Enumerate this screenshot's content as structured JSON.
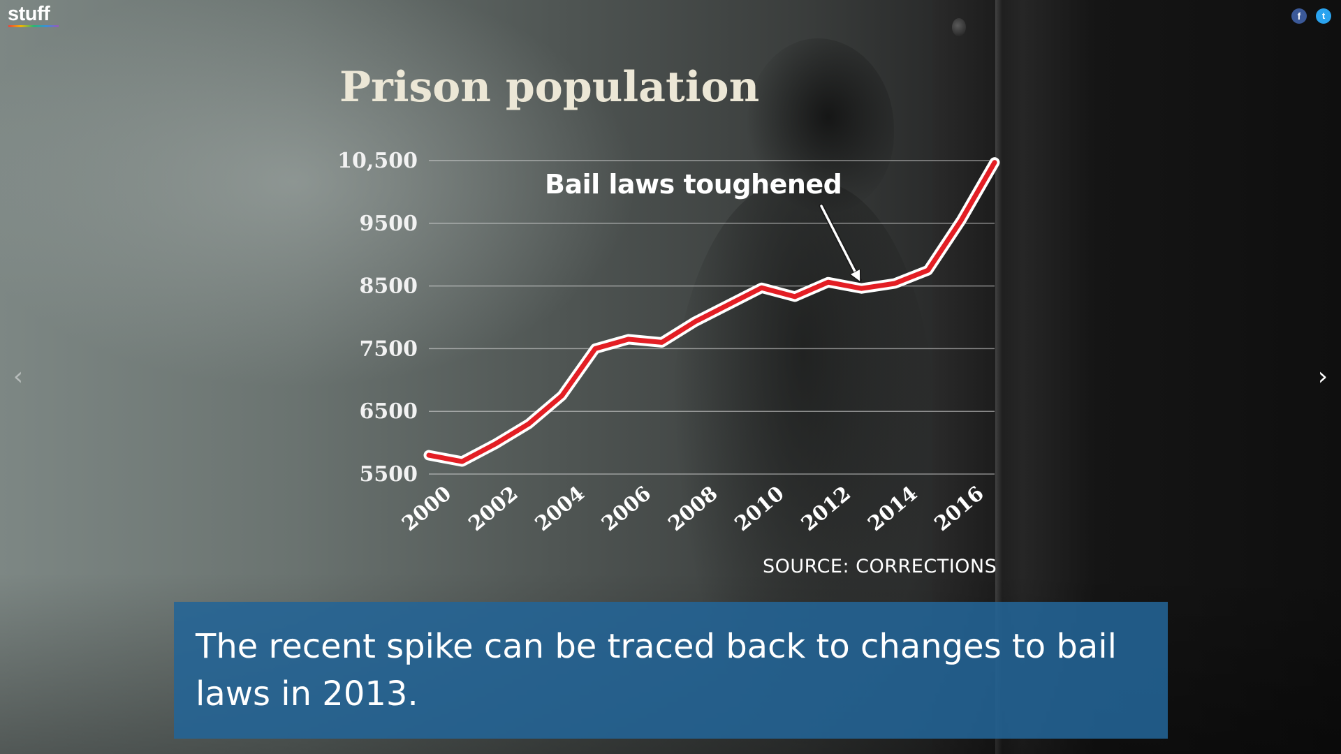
{
  "brand": {
    "logo": "stuff"
  },
  "social": {
    "facebook_glyph": "f",
    "twitter_glyph": "t"
  },
  "navigation": {
    "prev_icon": "chevron-left-icon",
    "next_icon": "chevron-right-icon",
    "prev_glyph": "‹",
    "next_glyph": "›"
  },
  "chart_data": {
    "type": "line",
    "title": "Prison population",
    "xlabel": "",
    "ylabel": "",
    "x": [
      2000,
      2001,
      2002,
      2003,
      2004,
      2005,
      2006,
      2007,
      2008,
      2009,
      2010,
      2011,
      2012,
      2013,
      2014,
      2015,
      2016,
      2017
    ],
    "series": [
      {
        "values": [
          5800,
          5700,
          5980,
          6300,
          6750,
          7500,
          7650,
          7600,
          7930,
          8200,
          8470,
          8330,
          8560,
          8460,
          8540,
          8750,
          9550,
          10470
        ],
        "color": "#e31e24",
        "outline": "#ffffff"
      }
    ],
    "y_ticks": [
      5500,
      6500,
      7500,
      8500,
      9500,
      10500
    ],
    "y_tick_labels": [
      "5500",
      "6500",
      "7500",
      "8500",
      "9500",
      "10,500"
    ],
    "x_ticks": [
      2000,
      2002,
      2004,
      2006,
      2008,
      2010,
      2012,
      2014,
      2016
    ],
    "x_tick_labels": [
      "2000",
      "2002",
      "2004",
      "2006",
      "2008",
      "2010",
      "2012",
      "2014",
      "2016"
    ],
    "ylim": [
      5500,
      10500
    ],
    "xlim": [
      2000,
      2017
    ],
    "grid": true,
    "annotation": {
      "text": "Bail laws toughened",
      "x": 2013,
      "y": 8460
    },
    "source": "SOURCE: CORRECTIONS"
  },
  "caption": {
    "text": "The recent spike can be traced back to changes to bail laws in 2013."
  }
}
